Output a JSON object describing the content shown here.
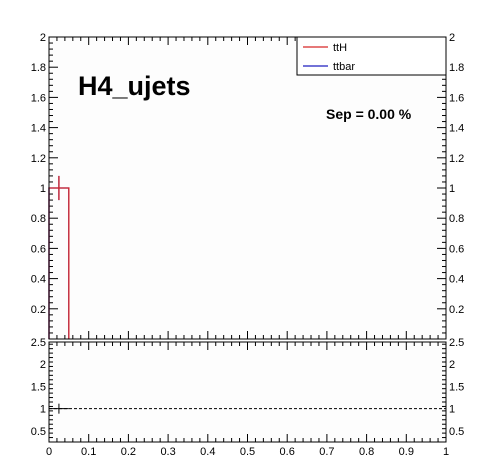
{
  "chart_data": [
    {
      "type": "line",
      "panel": "main",
      "title": "H4_ujets",
      "annotation": "Sep = 0.00 %",
      "xlim": [
        0,
        1
      ],
      "ylim": [
        0,
        2
      ],
      "x_ticks": [
        "0",
        "0.1",
        "0.2",
        "0.3",
        "0.4",
        "0.5",
        "0.6",
        "0.7",
        "0.8",
        "0.9",
        "1"
      ],
      "y_ticks": [
        "0.2",
        "0.4",
        "0.6",
        "0.8",
        "1",
        "1.2",
        "1.4",
        "1.6",
        "1.8",
        "2"
      ],
      "legend_position": "top-right",
      "series": [
        {
          "name": "ttH",
          "color": "#d62728",
          "bins": [
            [
              0,
              0.05,
              1
            ]
          ],
          "error": 0.08
        },
        {
          "name": "ttbar",
          "color": "#1f1fbf",
          "bins": [
            [
              0,
              0.05,
              1
            ]
          ],
          "error": 0.08
        }
      ]
    },
    {
      "type": "line",
      "panel": "ratio",
      "xlim": [
        0,
        1
      ],
      "ylim": [
        0.25,
        2.5
      ],
      "x_ticks": [
        "0",
        "0.1",
        "0.2",
        "0.3",
        "0.4",
        "0.5",
        "0.6",
        "0.7",
        "0.8",
        "0.9",
        "1"
      ],
      "y_ticks": [
        "0.5",
        "1",
        "1.5",
        "2",
        "2.5"
      ],
      "reference_line": 1,
      "points": [
        {
          "x": 0.025,
          "y": 1,
          "xerr": 0.025
        }
      ]
    }
  ]
}
